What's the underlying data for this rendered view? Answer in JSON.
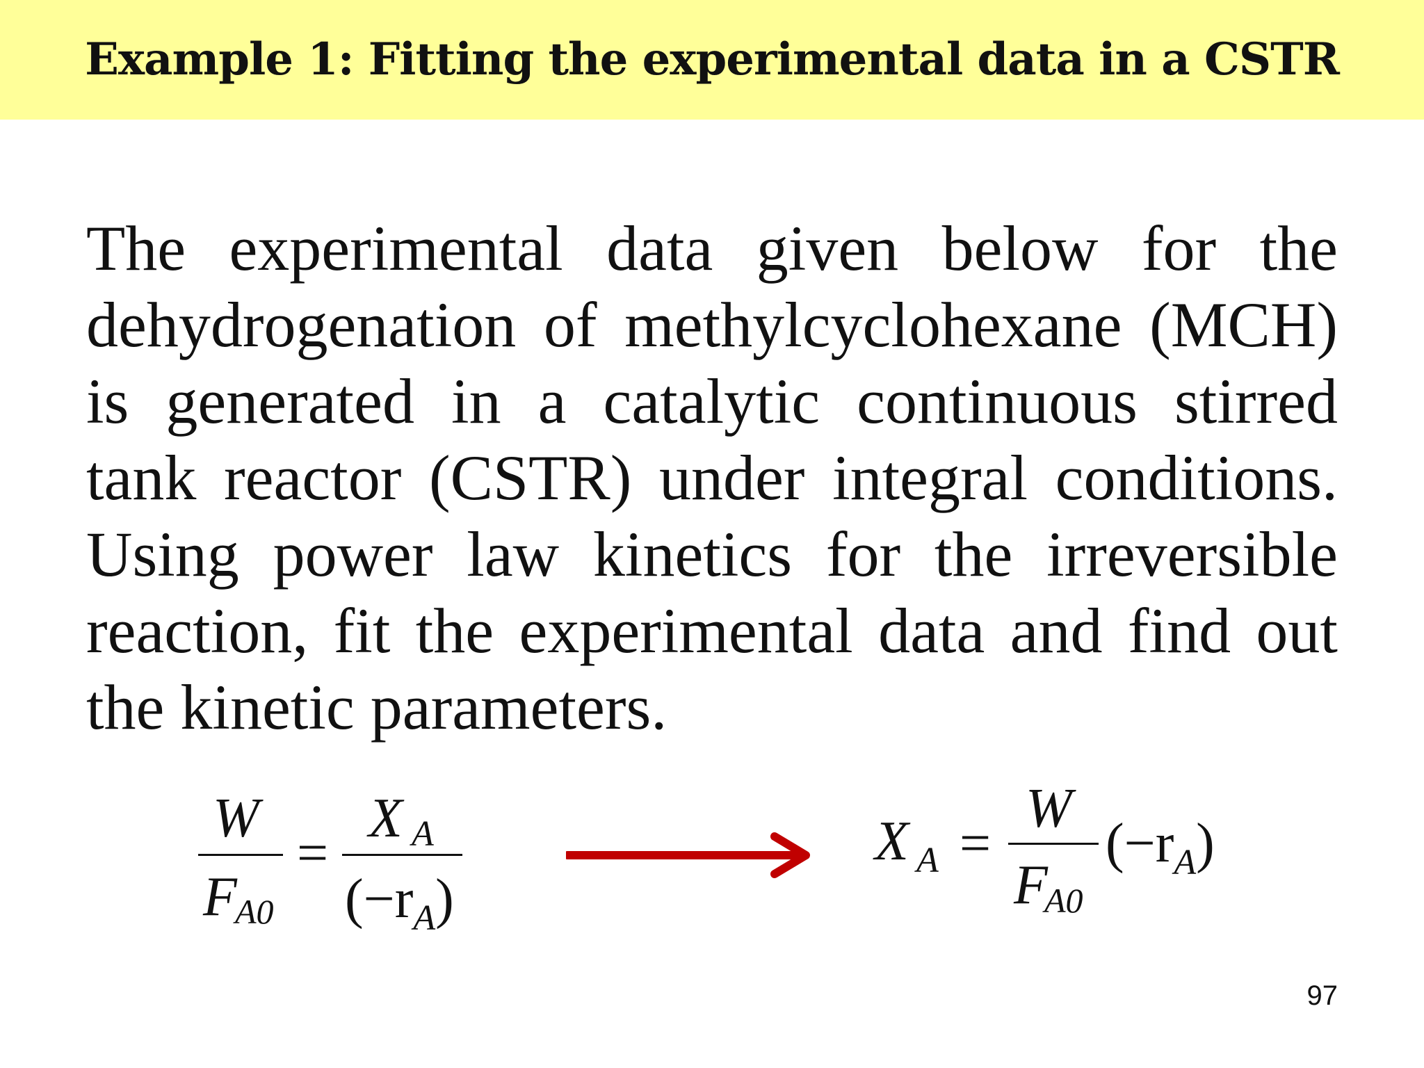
{
  "slide": {
    "title": "Example 1: Fitting the experimental data in a CSTR",
    "body": "The experimental data given below for the dehydrogenation of methylcyclohexane (MCH) is generated in a catalytic continuous stirred tank reactor (CSTR) under integral conditions. Using power law kinetics for the irreversible reaction, fit the experimental data and find out the kinetic parameters.",
    "page_number": "97"
  },
  "equation_left": {
    "lhs_numerator": "W",
    "lhs_denominator": "F",
    "lhs_denominator_sub": "A0",
    "equals": "=",
    "rhs_numerator": "X",
    "rhs_numerator_sub": "A",
    "rhs_denominator_open": "(−r",
    "rhs_denominator_sub": "A",
    "rhs_denominator_close": ")"
  },
  "equation_right": {
    "lhs": "X",
    "lhs_sub": "A",
    "equals": "=",
    "frac_numerator": "W",
    "frac_denominator": "F",
    "frac_denominator_sub": "A0",
    "rate_open": "(−r",
    "rate_sub": "A",
    "rate_close": ")"
  },
  "colors": {
    "title_bar": "#ffff99",
    "arrow": "#c00000"
  },
  "icons": {
    "arrow": "right-arrow-icon"
  }
}
